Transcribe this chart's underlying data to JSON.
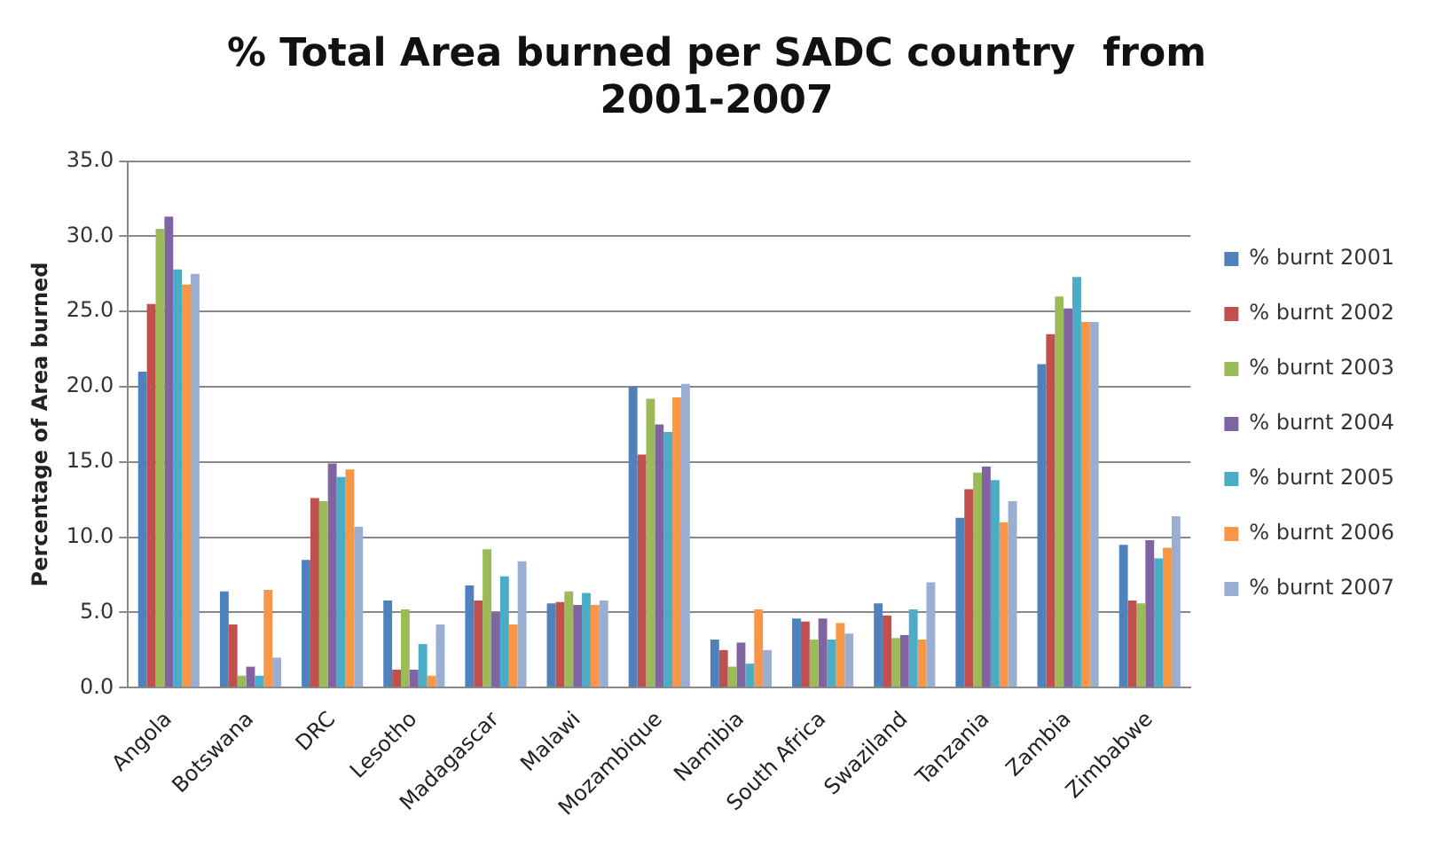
{
  "chart_data": {
    "type": "bar",
    "title": "% Total Area burned per SADC country  from 2001-2007",
    "ylabel": "Percentage of Area burned",
    "categories": [
      "Angola",
      "Botswana",
      "DRC",
      "Lesotho",
      "Madagascar",
      "Malawi",
      "Mozambique",
      "Namibia",
      "South Africa",
      "Swaziland",
      "Tanzania",
      "Zambia",
      "Zimbabwe"
    ],
    "series": [
      {
        "name": "% burnt 2001",
        "color": "#4f81bd",
        "values": [
          21,
          6.4,
          8.5,
          5.8,
          6.8,
          5.6,
          20,
          3.2,
          4.6,
          5.6,
          11.3,
          21.5,
          9.5
        ]
      },
      {
        "name": "% burnt 2002",
        "color": "#c0504d",
        "values": [
          25.5,
          4.2,
          12.6,
          1.2,
          5.8,
          5.7,
          15.5,
          2.5,
          4.4,
          4.8,
          13.2,
          23.5,
          5.8
        ]
      },
      {
        "name": "% burnt 2003",
        "color": "#9bbb59",
        "values": [
          30.5,
          0.8,
          12.4,
          5.2,
          9.2,
          6.4,
          19.2,
          1.4,
          3.2,
          3.3,
          14.3,
          26,
          5.6
        ]
      },
      {
        "name": "% burnt 2004",
        "color": "#8064a2",
        "values": [
          31.3,
          1.4,
          14.9,
          1.2,
          5,
          5.5,
          17.5,
          3,
          4.6,
          3.5,
          14.7,
          25.2,
          9.8
        ]
      },
      {
        "name": "% burnt 2005",
        "color": "#4bacc6",
        "values": [
          27.8,
          0.8,
          14,
          2.9,
          7.4,
          6.3,
          17,
          1.6,
          3.2,
          5.2,
          13.8,
          27.3,
          8.6
        ]
      },
      {
        "name": "% burnt 2006",
        "color": "#f79646",
        "values": [
          26.8,
          6.5,
          14.5,
          0.8,
          4.2,
          5.5,
          19.3,
          5.2,
          4.3,
          3.2,
          11,
          24.3,
          9.3
        ]
      },
      {
        "name": "% burnt 2007",
        "color": "#9aaed4",
        "values": [
          27.5,
          2,
          10.7,
          4.2,
          8.4,
          5.8,
          20.2,
          2.5,
          3.6,
          7,
          12.4,
          24.3,
          11.4
        ]
      }
    ],
    "ylim": [
      0,
      35
    ],
    "yticks": [
      {
        "value": 0,
        "label": "0.0"
      },
      {
        "value": 5,
        "label": "5.0"
      },
      {
        "value": 10,
        "label": "10.0"
      },
      {
        "value": 15,
        "label": "15.0"
      },
      {
        "value": 20,
        "label": "20.0"
      },
      {
        "value": 25,
        "label": "25.0"
      },
      {
        "value": 30,
        "label": "30.0"
      },
      {
        "value": 35,
        "label": "35.0"
      }
    ],
    "grid": "y",
    "legend": "right"
  }
}
